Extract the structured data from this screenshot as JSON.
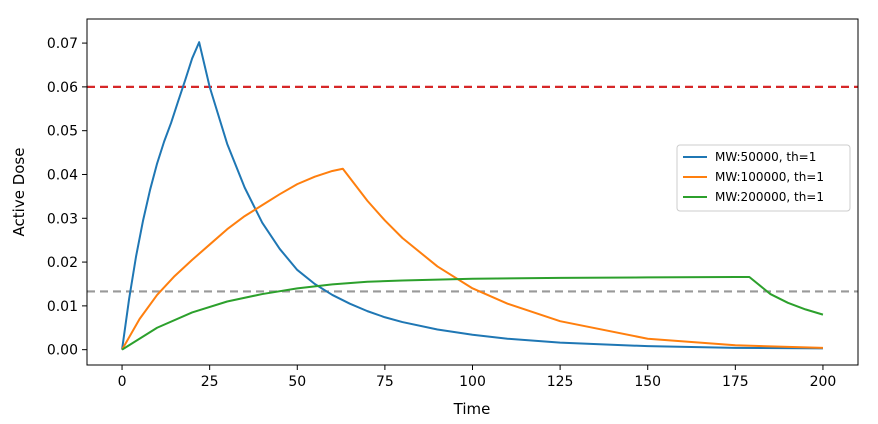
{
  "chart_data": {
    "type": "line",
    "xlabel": "Time",
    "ylabel": "Active Dose",
    "xlim": [
      -10,
      210
    ],
    "ylim": [
      -0.0035,
      0.0755
    ],
    "xticks": [
      0,
      25,
      50,
      75,
      100,
      125,
      150,
      175,
      200
    ],
    "xtick_labels": [
      "0",
      "25",
      "50",
      "75",
      "100",
      "125",
      "150",
      "175",
      "200"
    ],
    "yticks": [
      0.0,
      0.01,
      0.02,
      0.03,
      0.04,
      0.05,
      0.06,
      0.07
    ],
    "ytick_labels": [
      "0.00",
      "0.01",
      "0.02",
      "0.03",
      "0.04",
      "0.05",
      "0.06",
      "0.07"
    ],
    "grid": false,
    "legend_position": "center-right",
    "series": [
      {
        "name": "MW:50000, th=1",
        "color": "#1f77b4",
        "x": [
          0,
          2,
          4,
          6,
          8,
          10,
          12,
          14,
          16,
          18,
          20,
          22,
          25,
          30,
          35,
          40,
          45,
          50,
          55,
          60,
          65,
          70,
          75,
          80,
          90,
          100,
          110,
          125,
          150,
          175,
          200
        ],
        "y": [
          0.0,
          0.0115,
          0.0213,
          0.0295,
          0.0365,
          0.0425,
          0.0475,
          0.0518,
          0.0567,
          0.0615,
          0.0665,
          0.0702,
          0.06,
          0.047,
          0.037,
          0.029,
          0.023,
          0.0182,
          0.015,
          0.0125,
          0.0105,
          0.0088,
          0.0074,
          0.0063,
          0.0046,
          0.0034,
          0.0025,
          0.0016,
          0.0008,
          0.0004,
          0.0003
        ]
      },
      {
        "name": "MW:100000, th=1",
        "color": "#ff7f0e",
        "x": [
          0,
          5,
          10,
          15,
          20,
          25,
          30,
          35,
          40,
          45,
          50,
          55,
          60,
          63,
          70,
          75,
          80,
          90,
          100,
          110,
          125,
          150,
          175,
          200
        ],
        "y": [
          0.0,
          0.007,
          0.0125,
          0.0168,
          0.0205,
          0.024,
          0.0275,
          0.0305,
          0.033,
          0.0355,
          0.0378,
          0.0395,
          0.0408,
          0.0413,
          0.034,
          0.0295,
          0.0255,
          0.019,
          0.014,
          0.0105,
          0.0065,
          0.0025,
          0.001,
          0.0004
        ]
      },
      {
        "name": "MW:200000, th=1",
        "color": "#2ca02c",
        "x": [
          0,
          10,
          20,
          30,
          40,
          50,
          60,
          70,
          80,
          90,
          100,
          125,
          150,
          175,
          179,
          185,
          190,
          195,
          200
        ],
        "y": [
          0.0,
          0.005,
          0.0085,
          0.011,
          0.0127,
          0.014,
          0.0149,
          0.0155,
          0.0158,
          0.016,
          0.0162,
          0.0164,
          0.0165,
          0.0166,
          0.0166,
          0.0127,
          0.0107,
          0.0092,
          0.008
        ]
      }
    ],
    "reference_lines": [
      {
        "y": 0.06,
        "color": "#d62728",
        "style": "dashed"
      },
      {
        "y": 0.0133,
        "color": "#999999",
        "style": "dashed"
      }
    ]
  }
}
